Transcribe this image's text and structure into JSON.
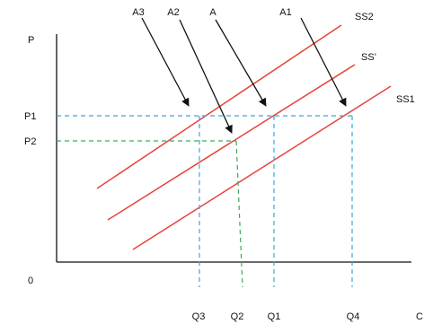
{
  "diagram": {
    "axis": {
      "y_label": "P",
      "origin_label": "0",
      "x_label_partial": "C"
    },
    "price_labels": [
      "P1",
      "P2"
    ],
    "quantity_labels": [
      "Q3",
      "Q2",
      "Q1",
      "Q4"
    ],
    "curves": [
      "SS2",
      "SS’",
      "SS1"
    ],
    "arrow_labels": [
      "A3",
      "A2",
      "A",
      "A1"
    ],
    "colors": {
      "axis": "#111111",
      "supply_curves": "#e8433a",
      "p1_guides": "#3aa8d8",
      "p2_guides": "#3aaa5a",
      "arrows": "#111111"
    }
  }
}
